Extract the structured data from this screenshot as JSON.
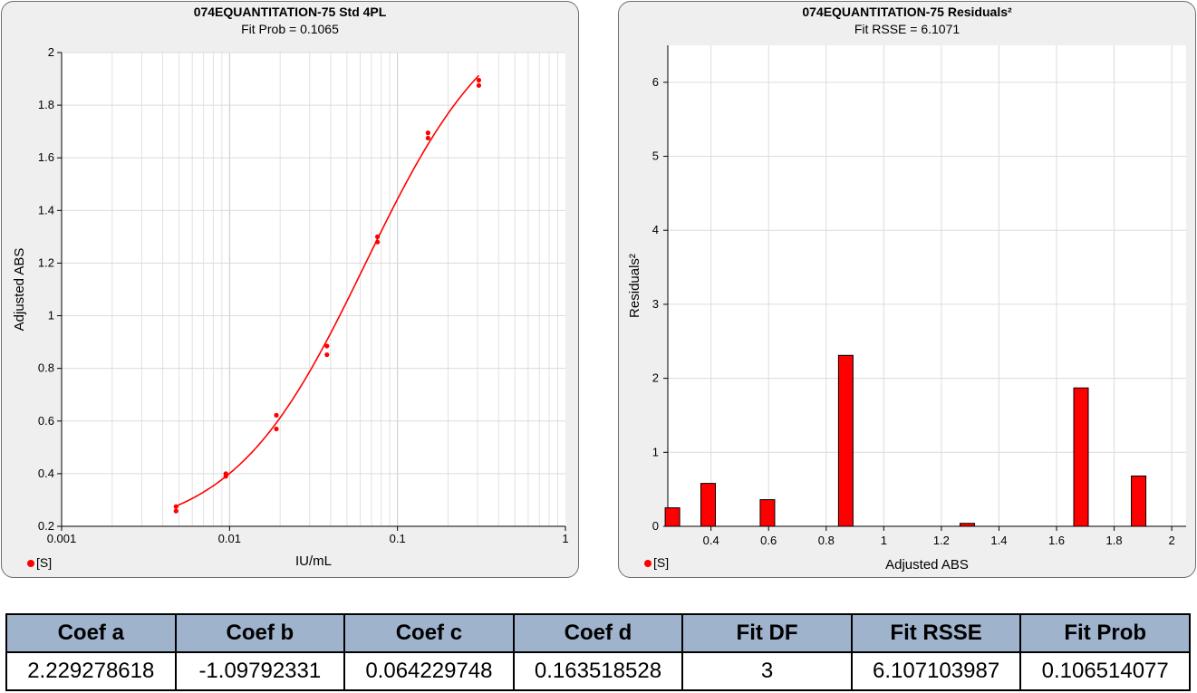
{
  "charts": {
    "left": {
      "title": "074EQUANTITATION-75  Std 4PL",
      "subtitle": "Fit Prob = 0.1065",
      "legend": "[S]"
    },
    "right": {
      "title": "074EQUANTITATION-75 Residuals²",
      "subtitle": "Fit RSSE = 6.1071",
      "legend": "[S]"
    }
  },
  "table": {
    "headers": [
      "Coef a",
      "Coef b",
      "Coef c",
      "Coef d",
      "Fit DF",
      "Fit RSSE",
      "Fit Prob"
    ],
    "values": [
      "2.229278618",
      "-1.09792331",
      "0.064229748",
      "0.163518528",
      "3",
      "6.107103987",
      "0.106514077"
    ]
  },
  "chart_data": [
    {
      "type": "scatter",
      "title": "074EQUANTITATION-75  Std 4PL",
      "subtitle": "Fit Prob = 0.1065",
      "xlabel": "IU/mL",
      "ylabel": "Adjusted ABS",
      "xscale": "log",
      "xlim": [
        0.001,
        1
      ],
      "ylim": [
        0.2,
        2
      ],
      "xticks": [
        "0.001",
        "0.01",
        "0.1",
        "1"
      ],
      "yticks": [
        "0.2",
        "0.4",
        "0.6",
        "0.8",
        "1",
        "1.2",
        "1.4",
        "1.6",
        "1.8",
        "2"
      ],
      "grid": true,
      "color": "#ff0000",
      "series": [
        {
          "name": "[S]",
          "x": [
            0.0048,
            0.0048,
            0.0095,
            0.0095,
            0.019,
            0.019,
            0.038,
            0.038,
            0.076,
            0.076,
            0.152,
            0.152,
            0.305,
            0.305
          ],
          "y": [
            0.258,
            0.275,
            0.39,
            0.4,
            0.57,
            0.622,
            0.852,
            0.885,
            1.28,
            1.3,
            1.675,
            1.695,
            1.875,
            1.895
          ]
        }
      ],
      "fit": {
        "model": "4PL",
        "a": 2.229278618,
        "b": -1.09792331,
        "c": 0.064229748,
        "d": 0.163518528,
        "xrange": [
          0.0048,
          0.305
        ]
      }
    },
    {
      "type": "bar",
      "title": "074EQUANTITATION-75 Residuals²",
      "subtitle": "Fit RSSE = 6.1071",
      "xlabel": "Adjusted ABS",
      "ylabel": "Residuals²",
      "xlim": [
        0.25,
        2.05
      ],
      "ylim": [
        0,
        6.5
      ],
      "xticks": [
        "0.4",
        "0.6",
        "0.8",
        "1",
        "1.2",
        "1.4",
        "1.6",
        "1.8",
        "2"
      ],
      "yticks": [
        "0",
        "1",
        "2",
        "3",
        "4",
        "5",
        "6"
      ],
      "grid": true,
      "color": "#ff0000",
      "x": [
        0.266,
        0.39,
        0.596,
        0.868,
        1.29,
        1.685,
        1.885
      ],
      "values": [
        0.25,
        0.58,
        0.36,
        2.31,
        0.04,
        1.87,
        0.68
      ]
    }
  ]
}
